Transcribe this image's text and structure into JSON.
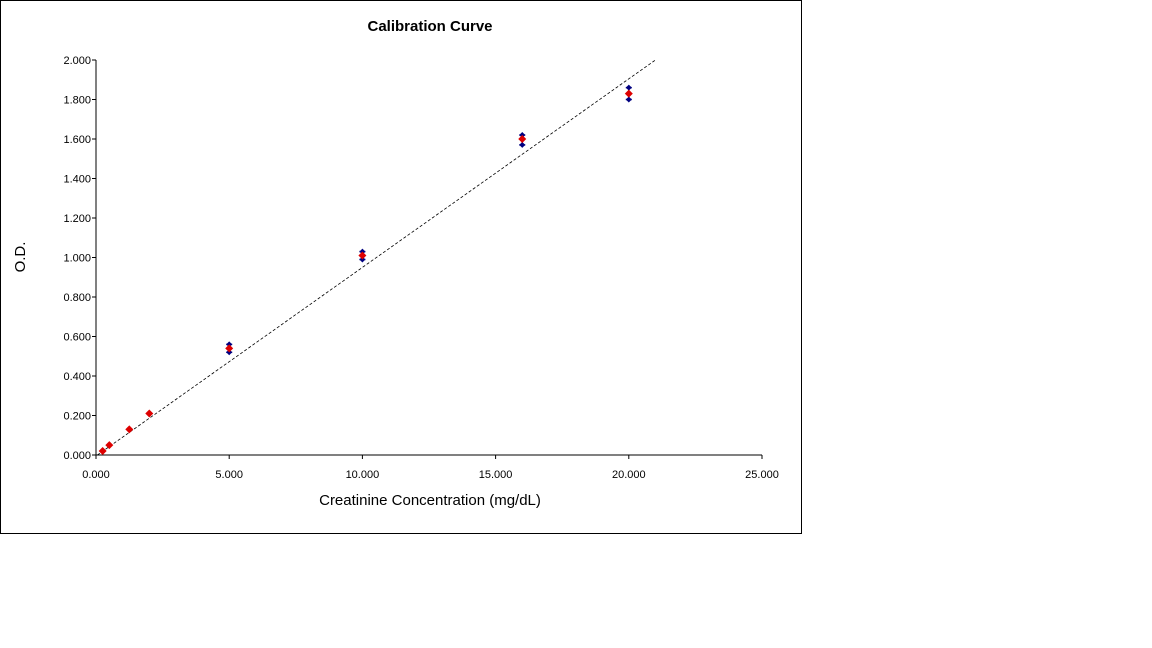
{
  "chart_data": {
    "type": "scatter",
    "title": "Calibration Curve",
    "xlabel": "Creatinine Concentration (mg/dL)",
    "ylabel": "O.D.",
    "xlim": [
      0,
      25
    ],
    "ylim": [
      0,
      2
    ],
    "x_ticks": [
      "0.000",
      "5.000",
      "10.000",
      "15.000",
      "20.000",
      "25.000"
    ],
    "y_ticks": [
      "0.000",
      "0.200",
      "0.400",
      "0.600",
      "0.800",
      "1.000",
      "1.200",
      "1.400",
      "1.600",
      "1.800",
      "2.000"
    ],
    "grid": false,
    "legend": "none",
    "series": [
      {
        "x": [
          0.25,
          0.5,
          1.25,
          2.0,
          5.0,
          10.0,
          16.0,
          20.0
        ],
        "y": [
          0.02,
          0.05,
          0.13,
          0.21,
          0.54,
          1.01,
          1.6,
          1.83
        ],
        "y_low": [
          0.02,
          0.05,
          0.13,
          0.21,
          0.52,
          0.99,
          1.57,
          1.8
        ],
        "y_high": [
          0.02,
          0.05,
          0.13,
          0.21,
          0.56,
          1.03,
          1.62,
          1.86
        ],
        "marker_color": "#dd0000",
        "errorbar_color": "#000080"
      }
    ],
    "trendline": {
      "x": [
        0.0,
        21.0
      ],
      "y": [
        -0.005,
        2.0
      ],
      "style": "dashed",
      "color": "#000000"
    }
  }
}
